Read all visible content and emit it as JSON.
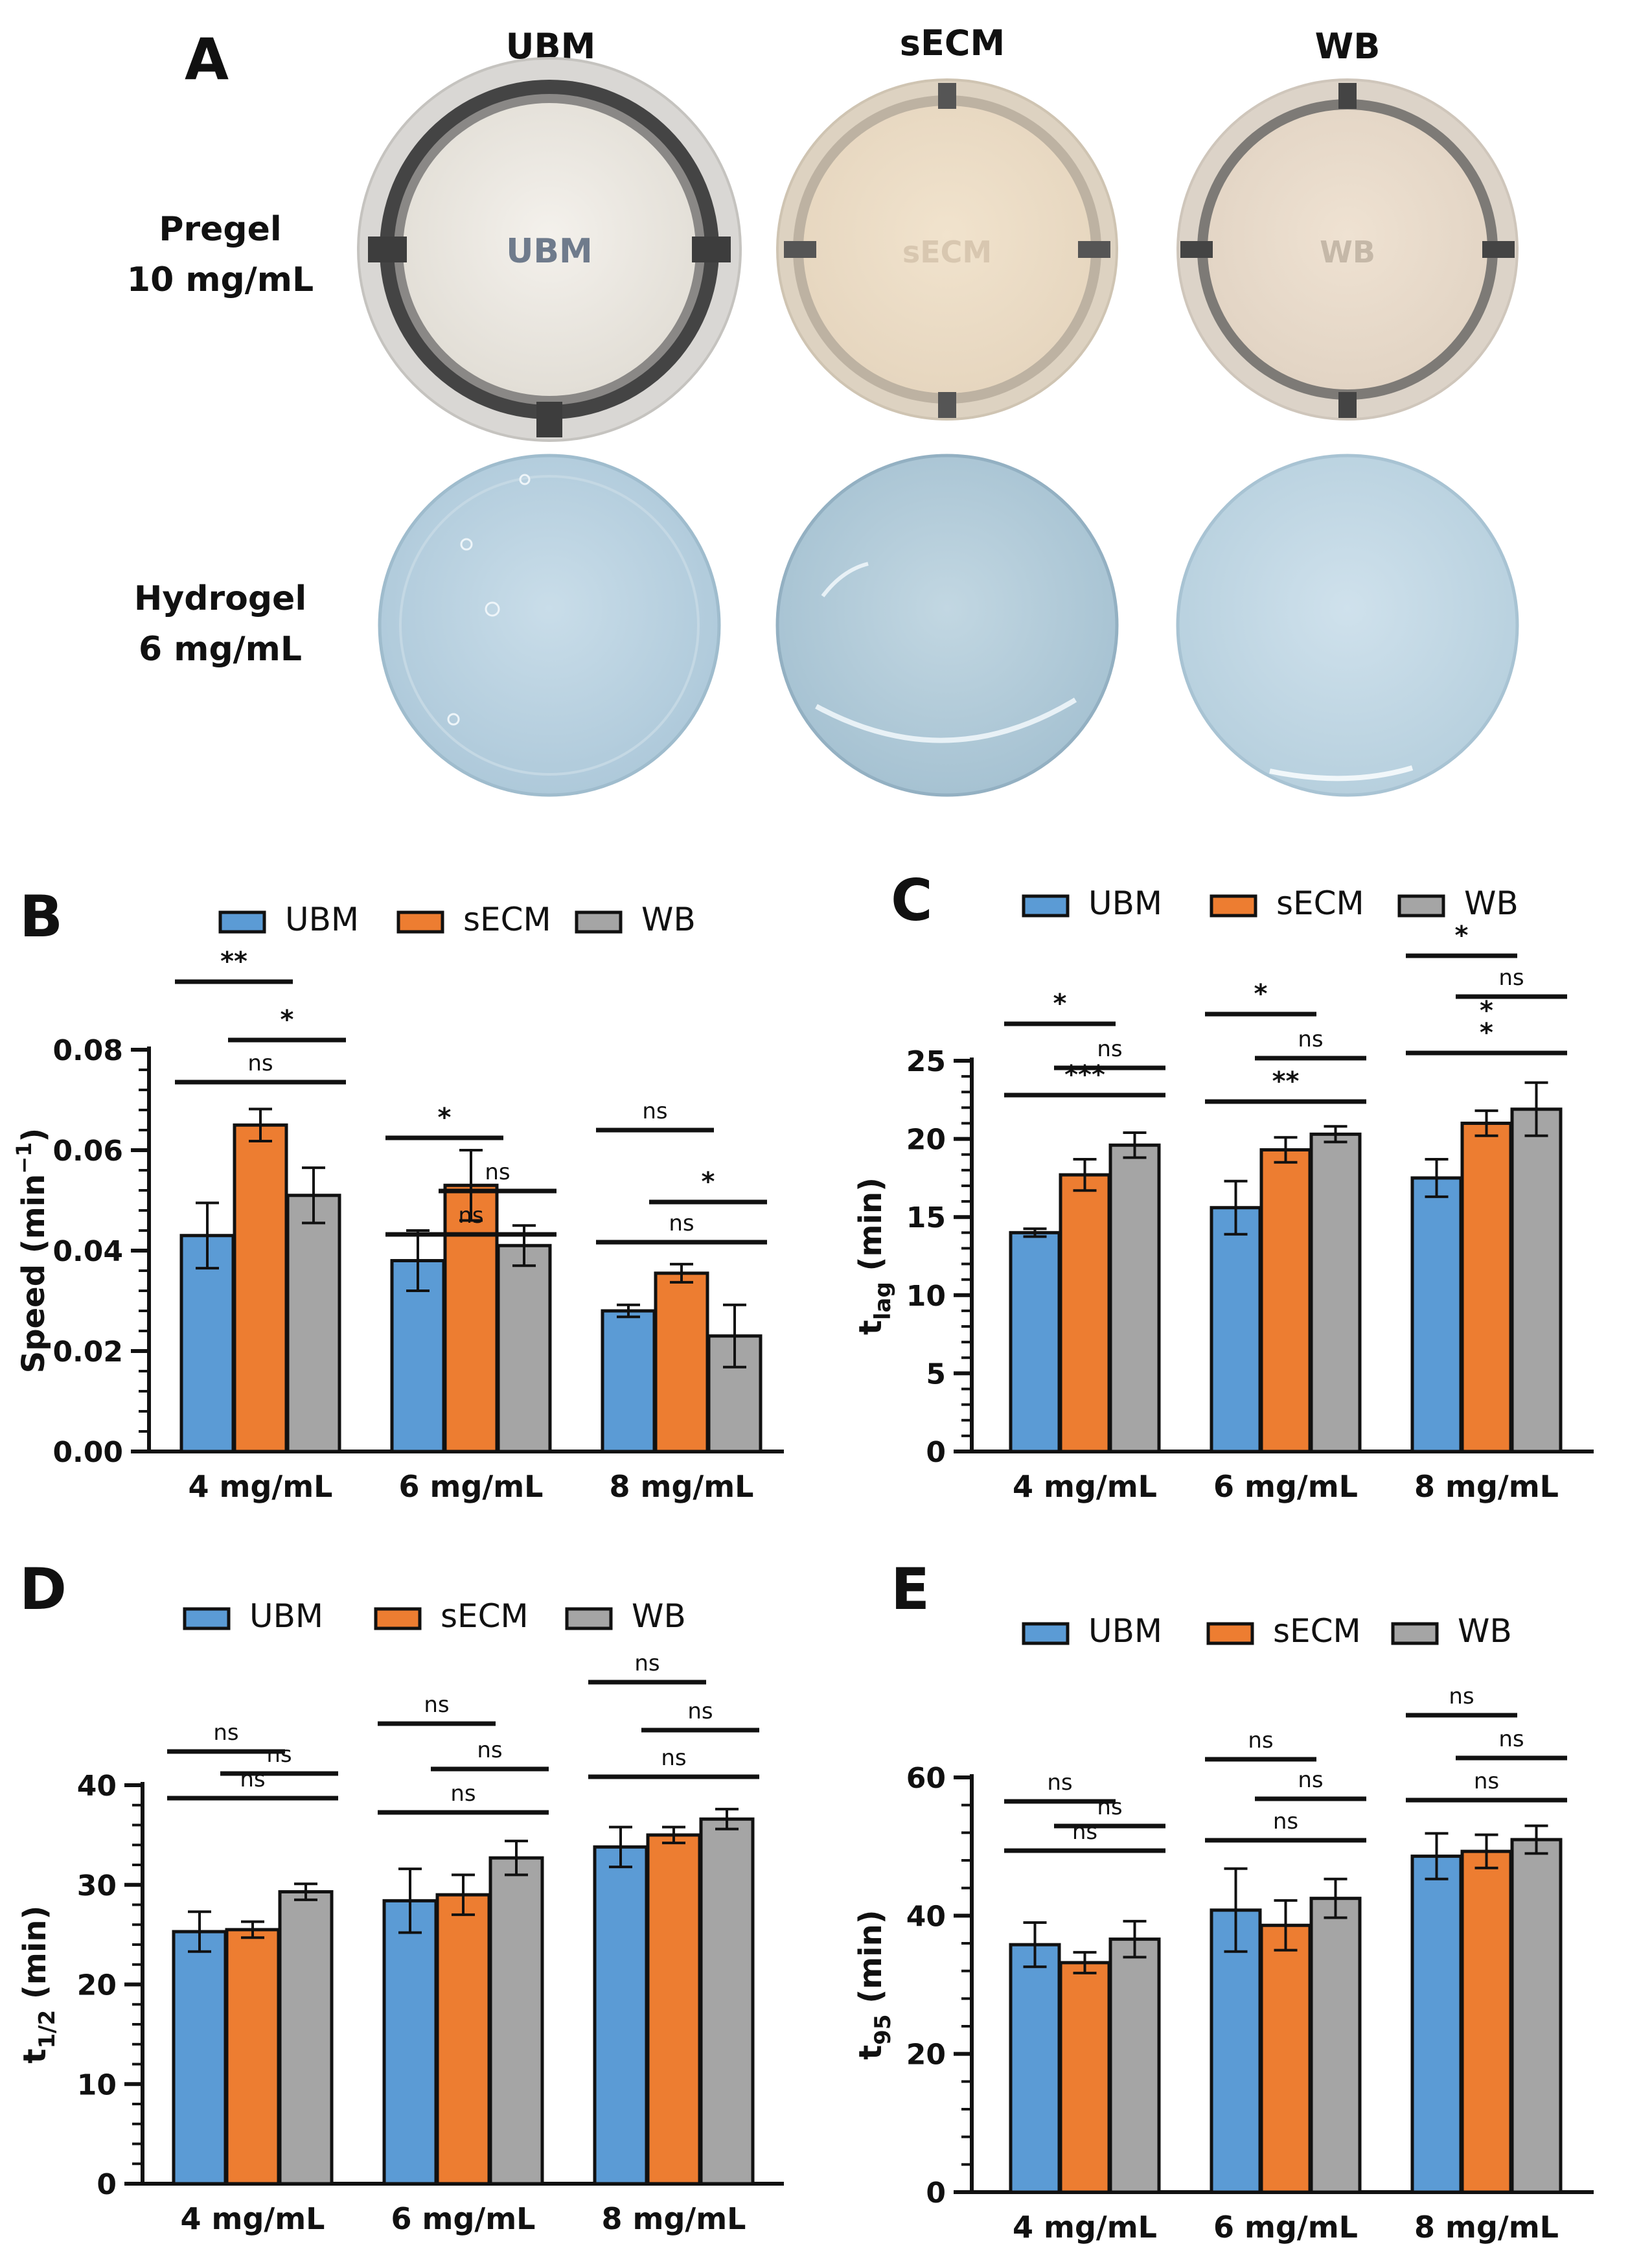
{
  "panel_a": {
    "letter": "A",
    "columns": [
      "UBM",
      "sECM",
      "WB"
    ],
    "rows": [
      {
        "line1": "Pregel",
        "line2": "10 mg/mL"
      },
      {
        "line1": "Hydrogel",
        "line2": "6 mg/mL"
      }
    ],
    "dish_labels": [
      "UBM",
      "sECM",
      "WB"
    ]
  },
  "colors": {
    "UBM": "#5b9bd5",
    "sECM": "#ed7d31",
    "WB": "#a5a5a5"
  },
  "legend_labels": [
    "UBM",
    "sECM",
    "WB"
  ],
  "chart_data": [
    {
      "id": "B",
      "type": "bar",
      "letter": "B",
      "categories": [
        "4 mg/mL",
        "6 mg/mL",
        "8 mg/mL"
      ],
      "ylabel_main": "Speed (min",
      "ylabel_sup": "−1",
      "ylabel_close": ")",
      "ylim": [
        0,
        0.08
      ],
      "yticks": [
        0.0,
        0.02,
        0.04,
        0.06,
        0.08
      ],
      "ytick_labels": [
        "0.00",
        "0.02",
        "0.04",
        "0.06",
        "0.08"
      ],
      "series": [
        {
          "name": "UBM",
          "values": [
            0.043,
            0.038,
            0.028
          ],
          "errors": [
            0.0065,
            0.006,
            0.0012
          ]
        },
        {
          "name": "sECM",
          "values": [
            0.065,
            0.053,
            0.0355
          ],
          "errors": [
            0.0032,
            0.007,
            0.0018
          ]
        },
        {
          "name": "WB",
          "values": [
            0.051,
            0.041,
            0.023
          ],
          "errors": [
            0.0055,
            0.004,
            0.0062
          ]
        }
      ],
      "significance": [
        {
          "cat": 0,
          "from": 0,
          "to": 1,
          "label": "**"
        },
        {
          "cat": 0,
          "from": 1,
          "to": 2,
          "label": "*"
        },
        {
          "cat": 0,
          "from": 0,
          "to": 2,
          "label": "ns"
        },
        {
          "cat": 1,
          "from": 0,
          "to": 1,
          "label": "*"
        },
        {
          "cat": 1,
          "from": 1,
          "to": 2,
          "label": "ns"
        },
        {
          "cat": 1,
          "from": 0,
          "to": 2,
          "label": "ns"
        },
        {
          "cat": 2,
          "from": 0,
          "to": 1,
          "label": "ns"
        },
        {
          "cat": 2,
          "from": 1,
          "to": 2,
          "label": "*"
        },
        {
          "cat": 2,
          "from": 0,
          "to": 2,
          "label": "ns"
        }
      ]
    },
    {
      "id": "C",
      "type": "bar",
      "letter": "C",
      "categories": [
        "4 mg/mL",
        "6 mg/mL",
        "8 mg/mL"
      ],
      "ylabel_main": "t",
      "ylabel_sub": "lag",
      "ylabel_close": " (min)",
      "ylim": [
        0,
        25
      ],
      "yticks": [
        0,
        5,
        10,
        15,
        20,
        25
      ],
      "ytick_labels": [
        "0",
        "5",
        "10",
        "15",
        "20",
        "25"
      ],
      "series": [
        {
          "name": "UBM",
          "values": [
            14.0,
            15.6,
            17.5
          ],
          "errors": [
            0.25,
            1.7,
            1.2
          ]
        },
        {
          "name": "sECM",
          "values": [
            17.7,
            19.3,
            21.0
          ],
          "errors": [
            1.0,
            0.8,
            0.8
          ]
        },
        {
          "name": "WB",
          "values": [
            19.6,
            20.3,
            21.9
          ],
          "errors": [
            0.8,
            0.5,
            1.7
          ]
        }
      ],
      "significance": [
        {
          "cat": 0,
          "from": 0,
          "to": 1,
          "label": "*"
        },
        {
          "cat": 0,
          "from": 1,
          "to": 2,
          "label": "ns"
        },
        {
          "cat": 0,
          "from": 0,
          "to": 2,
          "label": "***"
        },
        {
          "cat": 1,
          "from": 0,
          "to": 1,
          "label": "*"
        },
        {
          "cat": 1,
          "from": 1,
          "to": 2,
          "label": "ns"
        },
        {
          "cat": 1,
          "from": 0,
          "to": 2,
          "label": "**"
        },
        {
          "cat": 2,
          "from": 0,
          "to": 1,
          "label": "*"
        },
        {
          "cat": 2,
          "from": 1,
          "to": 2,
          "label": "ns"
        },
        {
          "cat": 2,
          "from": 0,
          "to": 2,
          "label": "*\n*"
        }
      ]
    },
    {
      "id": "D",
      "type": "bar",
      "letter": "D",
      "categories": [
        "4 mg/mL",
        "6 mg/mL",
        "8 mg/mL"
      ],
      "ylabel_main": "t",
      "ylabel_sub": "1/2",
      "ylabel_close": " (min)",
      "ylim": [
        0,
        40
      ],
      "yticks": [
        0,
        10,
        20,
        30,
        40
      ],
      "ytick_labels": [
        "0",
        "10",
        "20",
        "30",
        "40"
      ],
      "series": [
        {
          "name": "UBM",
          "values": [
            25.3,
            28.4,
            33.8
          ],
          "errors": [
            2.0,
            3.2,
            2.0
          ]
        },
        {
          "name": "sECM",
          "values": [
            25.5,
            29.0,
            35.0
          ],
          "errors": [
            0.8,
            2.0,
            0.8
          ]
        },
        {
          "name": "WB",
          "values": [
            29.3,
            32.7,
            36.6
          ],
          "errors": [
            0.8,
            1.7,
            1.0
          ]
        }
      ],
      "significance": [
        {
          "cat": 0,
          "from": 0,
          "to": 1,
          "label": "ns"
        },
        {
          "cat": 0,
          "from": 1,
          "to": 2,
          "label": "ns"
        },
        {
          "cat": 0,
          "from": 0,
          "to": 2,
          "label": "ns"
        },
        {
          "cat": 1,
          "from": 0,
          "to": 1,
          "label": "ns"
        },
        {
          "cat": 1,
          "from": 1,
          "to": 2,
          "label": "ns"
        },
        {
          "cat": 1,
          "from": 0,
          "to": 2,
          "label": "ns"
        },
        {
          "cat": 2,
          "from": 0,
          "to": 1,
          "label": "ns"
        },
        {
          "cat": 2,
          "from": 1,
          "to": 2,
          "label": "ns"
        },
        {
          "cat": 2,
          "from": 0,
          "to": 2,
          "label": "ns"
        }
      ]
    },
    {
      "id": "E",
      "type": "bar",
      "letter": "E",
      "categories": [
        "4 mg/mL",
        "6 mg/mL",
        "8 mg/mL"
      ],
      "ylabel_main": "t",
      "ylabel_sub": "95",
      "ylabel_close": " (min)",
      "ylim": [
        0,
        60
      ],
      "yticks": [
        0,
        20,
        40,
        60
      ],
      "ytick_labels": [
        "0",
        "20",
        "40",
        "60"
      ],
      "series": [
        {
          "name": "UBM",
          "values": [
            35.8,
            40.8,
            48.6
          ],
          "errors": [
            3.2,
            6.0,
            3.3
          ]
        },
        {
          "name": "sECM",
          "values": [
            33.2,
            38.6,
            49.3
          ],
          "errors": [
            1.5,
            3.6,
            2.4
          ]
        },
        {
          "name": "WB",
          "values": [
            36.6,
            42.5,
            51.0
          ],
          "errors": [
            2.6,
            2.8,
            2.0
          ]
        }
      ],
      "significance": [
        {
          "cat": 0,
          "from": 0,
          "to": 1,
          "label": "ns"
        },
        {
          "cat": 0,
          "from": 1,
          "to": 2,
          "label": "ns"
        },
        {
          "cat": 0,
          "from": 0,
          "to": 2,
          "label": "ns"
        },
        {
          "cat": 1,
          "from": 0,
          "to": 1,
          "label": "ns"
        },
        {
          "cat": 1,
          "from": 1,
          "to": 2,
          "label": "ns"
        },
        {
          "cat": 1,
          "from": 0,
          "to": 2,
          "label": "ns"
        },
        {
          "cat": 2,
          "from": 0,
          "to": 1,
          "label": "ns"
        },
        {
          "cat": 2,
          "from": 1,
          "to": 2,
          "label": "ns"
        },
        {
          "cat": 2,
          "from": 0,
          "to": 2,
          "label": "ns"
        }
      ]
    }
  ]
}
